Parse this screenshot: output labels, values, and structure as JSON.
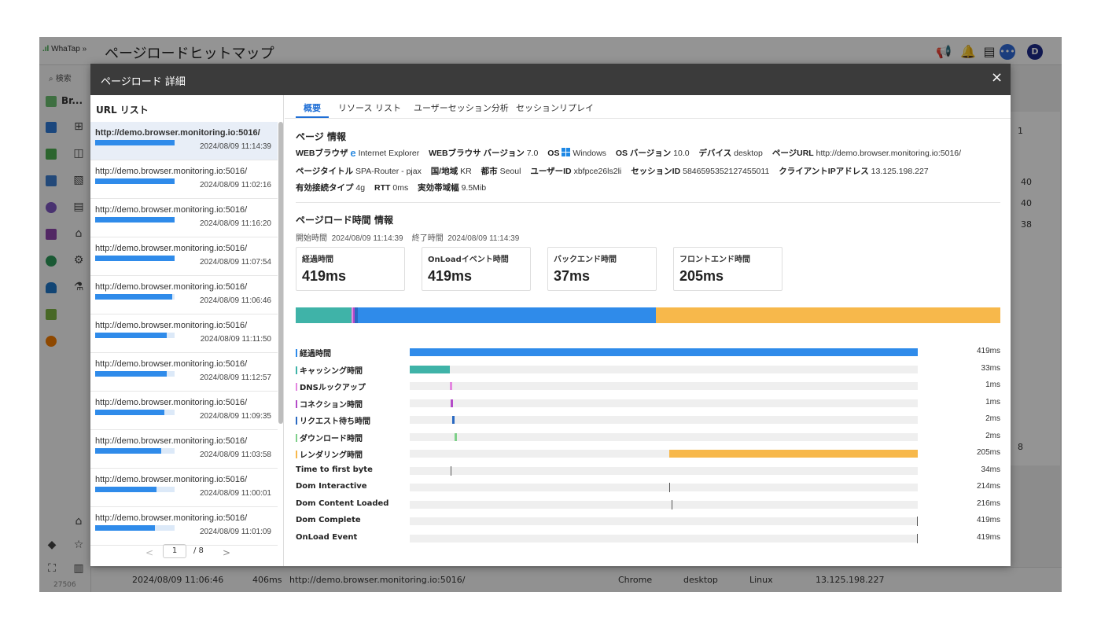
{
  "app": {
    "logo_text": "WhaTap",
    "logo_chevrons": "»",
    "title": "ページロードヒットマップ",
    "nav_search": "検索",
    "nav_section": "Br...",
    "nav_count": "27506"
  },
  "background": {
    "right_values": [
      "1",
      "40",
      "40",
      "38"
    ],
    "right_page": "8",
    "row": {
      "date": "2024/08/09 11:06:46",
      "duration": "406ms",
      "url": "http://demo.browser.monitoring.io:5016/",
      "browser": "Chrome",
      "device": "desktop",
      "os": "Linux",
      "ip": "13.125.198.227"
    }
  },
  "modal": {
    "title": "ページロード 詳細",
    "close": "×"
  },
  "url_list": {
    "title": "URL リスト",
    "items": [
      {
        "url": "http://demo.browser.monitoring.io:5016/",
        "date": "2024/08/09 11:14:39",
        "progress": 1.0,
        "selected": true
      },
      {
        "url": "http://demo.browser.monitoring.io:5016/",
        "date": "2024/08/09 11:02:16",
        "progress": 1.0
      },
      {
        "url": "http://demo.browser.monitoring.io:5016/",
        "date": "2024/08/09 11:16:20",
        "progress": 1.0
      },
      {
        "url": "http://demo.browser.monitoring.io:5016/",
        "date": "2024/08/09 11:07:54",
        "progress": 1.0
      },
      {
        "url": "http://demo.browser.monitoring.io:5016/",
        "date": "2024/08/09 11:06:46",
        "progress": 0.97
      },
      {
        "url": "http://demo.browser.monitoring.io:5016/",
        "date": "2024/08/09 11:11:50",
        "progress": 0.9
      },
      {
        "url": "http://demo.browser.monitoring.io:5016/",
        "date": "2024/08/09 11:12:57",
        "progress": 0.9
      },
      {
        "url": "http://demo.browser.monitoring.io:5016/",
        "date": "2024/08/09 11:09:35",
        "progress": 0.87
      },
      {
        "url": "http://demo.browser.monitoring.io:5016/",
        "date": "2024/08/09 11:03:58",
        "progress": 0.83
      },
      {
        "url": "http://demo.browser.monitoring.io:5016/",
        "date": "2024/08/09 11:00:01",
        "progress": 0.77
      },
      {
        "url": "http://demo.browser.monitoring.io:5016/",
        "date": "2024/08/09 11:01:09",
        "progress": 0.75
      }
    ],
    "pager": {
      "prev": "<",
      "current": "1",
      "total": "/ 8",
      "next": ">"
    }
  },
  "tabs": [
    {
      "label": "概要",
      "active": true
    },
    {
      "label": "リソース リスト"
    },
    {
      "label": "ユーザーセッション分析"
    },
    {
      "label": "セッションリプレイ"
    }
  ],
  "page_info": {
    "section_title": "ページ 情報",
    "browser_label": "WEBブラウザ",
    "browser": "Internet Explorer",
    "browser_version_label": "WEBブラウサ バージョン",
    "browser_version": "7.0",
    "os_label": "OS",
    "os": "Windows",
    "os_version_label": "OS バージョン",
    "os_version": "10.0",
    "device_label": "デバイス",
    "device": "desktop",
    "page_url_label": "ページURL",
    "page_url": "http://demo.browser.monitoring.io:5016/",
    "page_title_label": "ページタイトル",
    "page_title": "SPA-Router - pjax",
    "country_label": "国/地域",
    "country": "KR",
    "city_label": "都市",
    "city": "Seoul",
    "user_id_label": "ユーザーID",
    "user_id": "xbfpce26ls2li",
    "session_id_label": "セッションID",
    "session_id": "5846595352127455011",
    "client_ip_label": "クライアントIPアドレス",
    "client_ip": "13.125.198.227",
    "conn_type_label": "有効接続タイプ",
    "conn_type": "4g",
    "rtt_label": "RTT",
    "rtt": "0ms",
    "bandwidth_label": "実効帯域幅",
    "bandwidth": "9.5Mib"
  },
  "load_info": {
    "section_title": "ページロード時間 情報",
    "start_label": "開始時間",
    "start": "2024/08/09 11:14:39",
    "end_label": "終了時間",
    "end": "2024/08/09 11:14:39",
    "cards": [
      {
        "label": "経過時間",
        "value": "419ms"
      },
      {
        "label": "OnLoadイベント時間",
        "value": "419ms"
      },
      {
        "label": "バックエンド時間",
        "value": "37ms"
      },
      {
        "label": "フロントエンド時間",
        "value": "205ms"
      }
    ]
  },
  "colors": {
    "elapsed": "#2f8bea",
    "caching": "#3fb3a8",
    "dns": "#e487e0",
    "connection": "#b44bc8",
    "request_wait": "#2a69c2",
    "download": "#7fd08a",
    "rendering": "#f7b84b"
  },
  "stacked_bar": [
    {
      "name": "キャッシング時間",
      "start_ms": 0,
      "duration_ms": 33,
      "color": "#3fb3a8"
    },
    {
      "name": "DNSルックアップ",
      "start_ms": 33,
      "duration_ms": 1,
      "color": "#e487e0"
    },
    {
      "name": "コネクション時間",
      "start_ms": 34,
      "duration_ms": 1,
      "color": "#b44bc8"
    },
    {
      "name": "リクエスト待ち時間",
      "start_ms": 35,
      "duration_ms": 2,
      "color": "#2a69c2"
    },
    {
      "name": "elapsed",
      "start_ms": 37,
      "duration_ms": 177,
      "color": "#2f8bea"
    },
    {
      "name": "レンダリング時間",
      "start_ms": 214,
      "duration_ms": 205,
      "color": "#f7b84b"
    }
  ],
  "waterfall": {
    "total_ms": 419,
    "rows": [
      {
        "label": "経過時間",
        "marker": "#2f8bea",
        "type": "bar",
        "start_ms": 0,
        "duration_ms": 419,
        "color": "#2f8bea",
        "value": "419ms"
      },
      {
        "label": "キャッシング時間",
        "marker": "#3fb3a8",
        "type": "bar",
        "start_ms": 0,
        "duration_ms": 33,
        "color": "#3fb3a8",
        "value": "33ms"
      },
      {
        "label": "DNSルックアップ",
        "marker": "#e487e0",
        "type": "bar",
        "start_ms": 33,
        "duration_ms": 1,
        "color": "#e487e0",
        "value": "1ms"
      },
      {
        "label": "コネクション時間",
        "marker": "#b44bc8",
        "type": "bar",
        "start_ms": 34,
        "duration_ms": 1,
        "color": "#b44bc8",
        "value": "1ms"
      },
      {
        "label": "リクエスト待ち時間",
        "marker": "#2a69c2",
        "type": "bar",
        "start_ms": 35,
        "duration_ms": 2,
        "color": "#2a69c2",
        "value": "2ms"
      },
      {
        "label": "ダウンロード時間",
        "marker": "#7fd08a",
        "type": "bar",
        "start_ms": 37,
        "duration_ms": 2,
        "color": "#7fd08a",
        "value": "2ms"
      },
      {
        "label": "レンダリング時間",
        "marker": "#f7b84b",
        "type": "bar",
        "start_ms": 214,
        "duration_ms": 205,
        "color": "#f7b84b",
        "value": "205ms"
      },
      {
        "label": "Time to first byte",
        "type": "tick",
        "at_ms": 34,
        "value": "34ms"
      },
      {
        "label": "Dom Interactive",
        "type": "tick",
        "at_ms": 214,
        "value": "214ms"
      },
      {
        "label": "Dom Content Loaded",
        "type": "tick",
        "at_ms": 216,
        "value": "216ms"
      },
      {
        "label": "Dom Complete",
        "type": "tick",
        "at_ms": 419,
        "value": "419ms"
      },
      {
        "label": "OnLoad Event",
        "type": "tick",
        "at_ms": 419,
        "value": "419ms"
      }
    ]
  }
}
